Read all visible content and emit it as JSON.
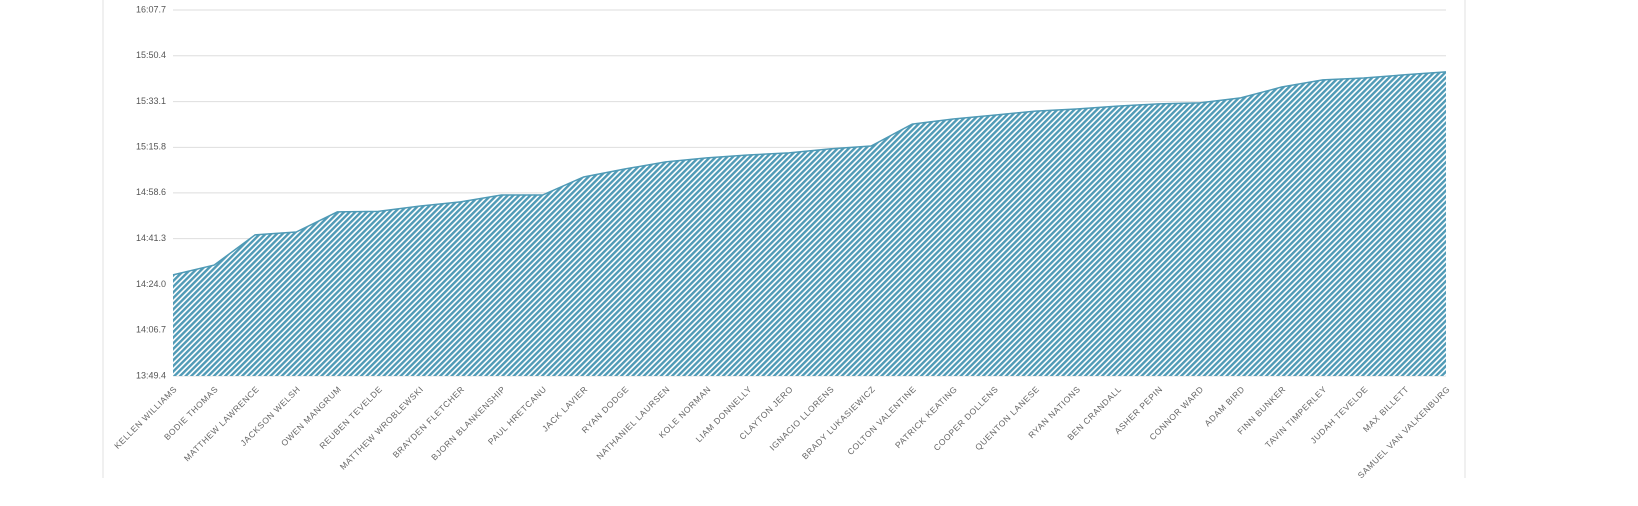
{
  "chart_data": {
    "type": "area",
    "color": "#4f9ab6",
    "grid": true,
    "categories": [
      "Kellen Williams",
      "Bodie Thomas",
      "Matthew Lawrence",
      "Jackson Welsh",
      "Owen Mangrum",
      "Reuben Tevelde",
      "Matthew Wroblewski",
      "Brayden Fletcher",
      "Bjorn Blankenship",
      "Paul Hretcanu",
      "Jack Lavier",
      "Ryan Dodge",
      "Nathaniel Laursen",
      "Kole Norman",
      "Liam Donnelly",
      "Clayton Jero",
      "Ignacio Llorens",
      "Brady Lukasiewicz",
      "Colton Valentine",
      "Patrick Keating",
      "Cooper Dollens",
      "Quenton Lanese",
      "Ryan Nations",
      "Ben Crandall",
      "Asher Pepin",
      "Connor Ward",
      "Adam Bird",
      "Finn Bunker",
      "Tavin Timperley",
      "Judah Tevelde",
      "Max Billett",
      "Samuel Van Valkenburg"
    ],
    "values": [
      867.6,
      871.3,
      882.7,
      883.8,
      891.4,
      891.6,
      893.6,
      895.2,
      897.8,
      897.8,
      904.6,
      907.6,
      910.3,
      911.8,
      912.9,
      913.7,
      915.2,
      916.3,
      924.6,
      926.5,
      928.0,
      929.5,
      930.3,
      931.4,
      932.2,
      932.6,
      934.5,
      938.6,
      941.3,
      942.0,
      943.2,
      944.3
    ],
    "ylim": [
      829.4,
      967.7
    ],
    "yticks": [
      {
        "value": 829.4,
        "label": "13:49.4"
      },
      {
        "value": 846.7,
        "label": "14:06.7"
      },
      {
        "value": 864.0,
        "label": "14:24.0"
      },
      {
        "value": 881.3,
        "label": "14:41.3"
      },
      {
        "value": 898.6,
        "label": "14:58.6"
      },
      {
        "value": 915.8,
        "label": "15:15.8"
      },
      {
        "value": 933.1,
        "label": "15:33.1"
      },
      {
        "value": 950.4,
        "label": "15:50.4"
      },
      {
        "value": 967.7,
        "label": "16:07.7"
      }
    ]
  }
}
